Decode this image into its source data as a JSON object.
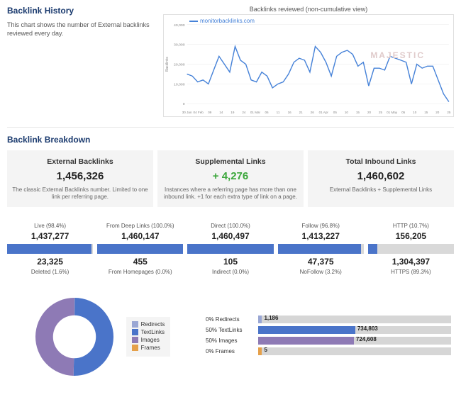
{
  "history": {
    "title": "Backlink History",
    "description": "This chart shows the number of External backlinks reviewed every day.",
    "chart": {
      "title": "Backlinks reviewed (non-cumulative view)",
      "series_label": "monitorbacklinks.com",
      "watermark": "MAJESTIC",
      "line_color": "#4682d8",
      "grid_color": "#e8e8e8",
      "ylim": [
        0,
        40000
      ],
      "ytick_step": 10000,
      "ylabels": [
        "0",
        "10,000",
        "20,000",
        "30,000",
        "40,000"
      ],
      "ylabel_axis": "Backlinks",
      "xlabels": [
        "30 Jan",
        "04 Feb",
        "09",
        "14",
        "19",
        "24",
        "01 Mar",
        "06",
        "11",
        "16",
        "21",
        "26",
        "01 Apr",
        "05",
        "10",
        "15",
        "20",
        "25",
        "01 May",
        "05",
        "10",
        "15",
        "20",
        "25"
      ],
      "values": [
        15000,
        14000,
        11000,
        12000,
        10000,
        17000,
        24000,
        20000,
        16000,
        29000,
        22000,
        20000,
        12000,
        11000,
        16000,
        14000,
        8000,
        10000,
        11000,
        15000,
        21000,
        23000,
        22000,
        16000,
        29000,
        26000,
        21000,
        14000,
        24000,
        26000,
        27000,
        25000,
        19000,
        21000,
        9000,
        18000,
        18000,
        17000,
        24000,
        23000,
        22000,
        21000,
        10000,
        20000,
        18000,
        19000,
        19000,
        12000,
        5000,
        1000
      ]
    }
  },
  "breakdown": {
    "title": "Backlink Breakdown",
    "cards": [
      {
        "label": "External Backlinks",
        "value": "1,456,326",
        "value_color": "#222",
        "sub": "The classic External Backlinks number. Limited to one link per referring page."
      },
      {
        "label": "Supplemental Links",
        "value": "+ 4,276",
        "value_color": "#3aa63a",
        "sub": "Instances where a referring page has more than one inbound link. +1 for each extra type of link on a page."
      },
      {
        "label": "Total Inbound Links",
        "value": "1,460,602",
        "value_color": "#222",
        "sub": "External Backlinks + Supplemental Links"
      }
    ],
    "stats": [
      {
        "top_label": "Live (98.4%)",
        "top_value": "1,437,277",
        "pct": 98.4,
        "bottom_value": "23,325",
        "bottom_label": "Deleted (1.6%)"
      },
      {
        "top_label": "From Deep Links (100.0%)",
        "top_value": "1,460,147",
        "pct": 100.0,
        "bottom_value": "455",
        "bottom_label": "From Homepages (0.0%)"
      },
      {
        "top_label": "Direct (100.0%)",
        "top_value": "1,460,497",
        "pct": 100.0,
        "bottom_value": "105",
        "bottom_label": "Indirect (0.0%)"
      },
      {
        "top_label": "Follow (96.8%)",
        "top_value": "1,413,227",
        "pct": 96.8,
        "bottom_value": "47,375",
        "bottom_label": "NoFollow (3.2%)"
      },
      {
        "top_label": "HTTP (10.7%)",
        "top_value": "156,205",
        "pct": 10.7,
        "bottom_value": "1,304,397",
        "bottom_label": "HTTPS (89.3%)"
      }
    ],
    "fill_color": "#4a74c9",
    "track_color": "#d9d9d9"
  },
  "donut": {
    "segments": [
      {
        "label": "Redirects",
        "pct": 0.08,
        "color": "#9aa7d4"
      },
      {
        "label": "TextLinks",
        "pct": 50.3,
        "color": "#4a74c9"
      },
      {
        "label": "Images",
        "pct": 49.6,
        "color": "#8e7ab5"
      },
      {
        "label": "Frames",
        "pct": 0.0003,
        "color": "#e5a04a"
      }
    ],
    "inner_ratio": 0.55,
    "bg": "#f4f4f4"
  },
  "hbars": {
    "track_color": "#d6d6d6",
    "rows": [
      {
        "label": "0% Redirects",
        "value": "1,186",
        "pct": 0.08,
        "color": "#9aa7d4"
      },
      {
        "label": "50% TextLinks",
        "value": "734,803",
        "pct": 50.3,
        "color": "#4a74c9"
      },
      {
        "label": "50% Images",
        "value": "724,608",
        "pct": 49.6,
        "color": "#8e7ab5"
      },
      {
        "label": "0% Frames",
        "value": "5",
        "pct": 0.0003,
        "color": "#e5a04a"
      }
    ]
  }
}
